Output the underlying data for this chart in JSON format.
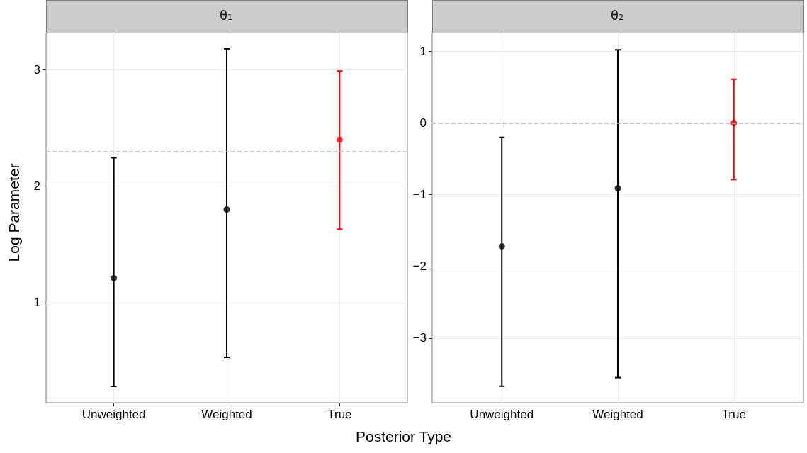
{
  "chart_data": [
    {
      "type": "scatter",
      "title": "θ₁",
      "ylabel": "Log Parameter",
      "xlabel": "Posterior Type",
      "categories": [
        "Unweighted",
        "Weighted",
        "True"
      ],
      "values": [
        1.21,
        1.8,
        2.4
      ],
      "errors": [
        [
          0.28,
          2.245
        ],
        [
          0.53,
          3.18
        ],
        [
          1.63,
          2.99
        ]
      ],
      "colors": [
        "#000000",
        "#000000",
        "#ff0000"
      ],
      "ylim": [
        0.14,
        3.32
      ],
      "yticks": [
        1,
        2,
        3
      ],
      "grid": true,
      "marker": "circle",
      "ref_lines": [
        {
          "axis": "y",
          "value": 2.3,
          "color": "#bbbbbb",
          "line_style": "dashed"
        }
      ]
    },
    {
      "type": "scatter",
      "title": "θ₂",
      "categories": [
        "Unweighted",
        "Weighted",
        "True"
      ],
      "values": [
        -1.72,
        -0.91,
        0
      ],
      "errors": [
        [
          -3.67,
          -0.2
        ],
        [
          -3.55,
          1.02
        ],
        [
          -0.79,
          0.61
        ]
      ],
      "colors": [
        "#000000",
        "#000000",
        "#ff0000"
      ],
      "ylim": [
        -3.9,
        1.26
      ],
      "yticks": [
        -3,
        -2,
        -1,
        0,
        1
      ],
      "grid": true,
      "marker": "circle",
      "ref_lines": [
        {
          "axis": "y",
          "value": 0,
          "color": "#bbbbbb",
          "line_style": "dashed"
        }
      ]
    }
  ]
}
